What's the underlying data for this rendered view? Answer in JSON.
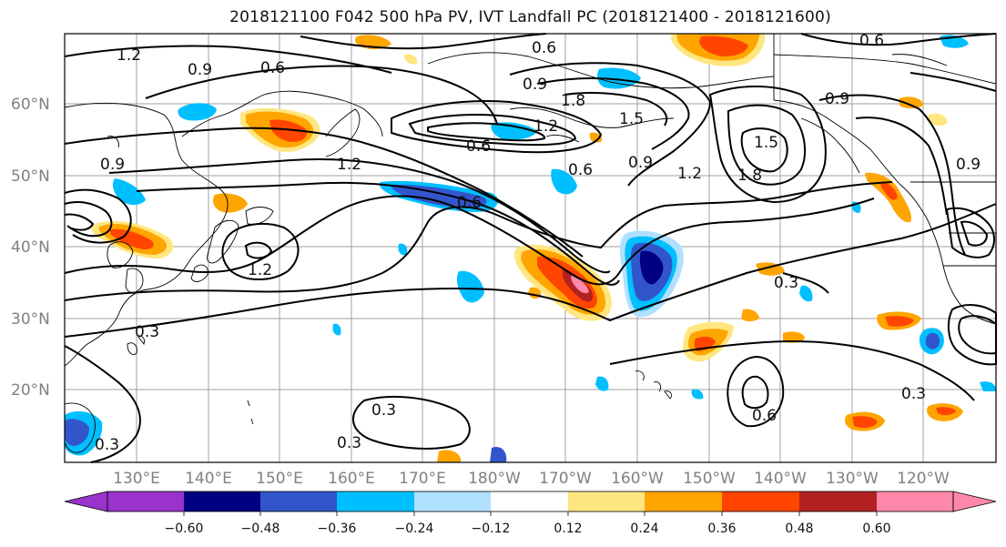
{
  "title": "2018121100 F042 500 hPa PV, IVT Landfall PC (2018121400 - 2018121600)",
  "lat_ticks": [
    "60°N",
    "50°N",
    "40°N",
    "30°N",
    "20°N"
  ],
  "lon_ticks": [
    "130°E",
    "140°E",
    "150°E",
    "160°E",
    "170°E",
    "180°W",
    "170°W",
    "160°W",
    "150°W",
    "140°W",
    "130°W",
    "120°W"
  ],
  "contour_labels": [
    "1.2",
    "0.9",
    "0.6",
    "0.6",
    "0.9",
    "1.8",
    "1.2",
    "0.6",
    "1.5",
    "0.6",
    "1.5",
    "1.8",
    "1.2",
    "0.9",
    "1.2",
    "0.6",
    "0.9",
    "1.2",
    "0.9",
    "0.3",
    "0.3",
    "0.6",
    "0.3",
    "0.3",
    "0.3",
    "0.3",
    "0.6",
    "0.9"
  ],
  "colorbar": {
    "ticks": [
      "−0.60",
      "−0.48",
      "−0.36",
      "−0.24",
      "−0.12",
      "0.12",
      "0.24",
      "0.36",
      "0.48",
      "0.60"
    ],
    "colors": [
      "#9933cc",
      "#000080",
      "#3355cc",
      "#00bfff",
      "#b0e0ff",
      "#ffffff",
      "#ffe680",
      "#ffa500",
      "#ff4500",
      "#b22222",
      "#ff88aa",
      "#ff88aa"
    ],
    "under_color": "#9933cc",
    "over_color": "#ff88aa"
  },
  "colors": {
    "contour": "#000000",
    "grid": "#a0a0a0",
    "coast": "#000000"
  }
}
